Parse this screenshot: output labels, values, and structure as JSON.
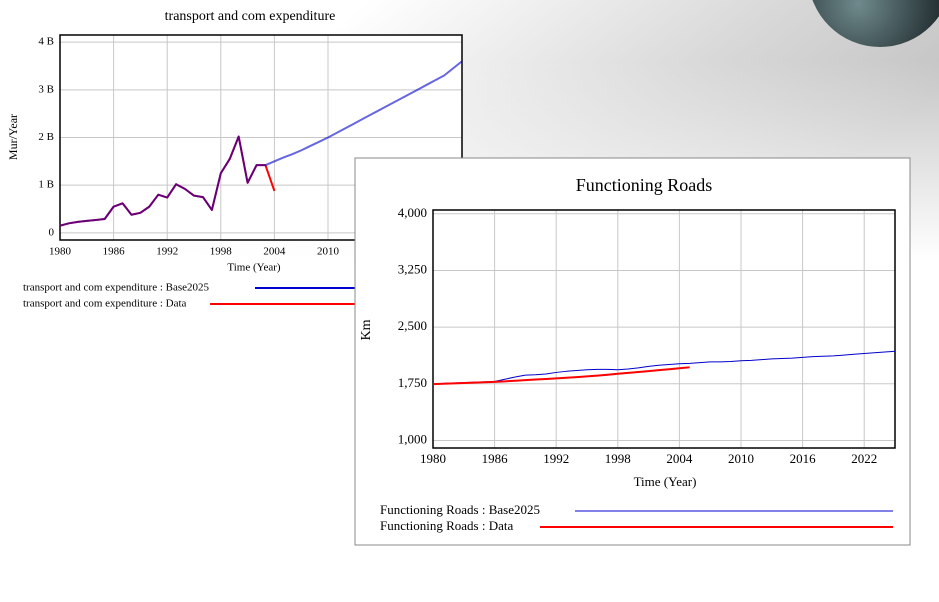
{
  "chart_data": [
    {
      "type": "line",
      "title": "transport and com expenditure",
      "x_label": "Time (Year)",
      "y_label": "Mur/Year",
      "x": [
        1980,
        1981,
        1982,
        1983,
        1984,
        1985,
        1986,
        1987,
        1988,
        1989,
        1990,
        1991,
        1992,
        1993,
        1994,
        1995,
        1996,
        1997,
        1998,
        1999,
        2000,
        2001,
        2002,
        2003,
        2004,
        2005,
        2006,
        2007,
        2008,
        2009,
        2010,
        2011,
        2012,
        2013,
        2014,
        2015,
        2016,
        2017,
        2018,
        2019,
        2020,
        2021,
        2022,
        2023,
        2024,
        2025
      ],
      "series": [
        {
          "name": "transport and com expenditure : Base2025",
          "color": "#0000cc",
          "values": [
            150000000,
            200000000,
            230000000,
            250000000,
            270000000,
            290000000,
            550000000,
            620000000,
            380000000,
            420000000,
            550000000,
            800000000,
            740000000,
            1020000000,
            920000000,
            780000000,
            750000000,
            480000000,
            1250000000,
            1550000000,
            2020000000,
            1050000000,
            1420000000,
            1420000000,
            1500000000,
            1580000000,
            1650000000,
            1730000000,
            1820000000,
            1910000000,
            2000000000,
            2100000000,
            2200000000,
            2300000000,
            2400000000,
            2500000000,
            2600000000,
            2700000000,
            2800000000,
            2900000000,
            3000000000,
            3100000000,
            3200000000,
            3300000000,
            3450000000,
            3600000000
          ]
        },
        {
          "name": "transport and com expenditure : Data",
          "color": "#ff0000",
          "values": [
            150000000,
            200000000,
            230000000,
            250000000,
            270000000,
            290000000,
            550000000,
            620000000,
            380000000,
            420000000,
            550000000,
            800000000,
            740000000,
            1020000000,
            920000000,
            780000000,
            750000000,
            480000000,
            1250000000,
            1550000000,
            2020000000,
            1050000000,
            1420000000,
            1420000000,
            880000000,
            null,
            null,
            null,
            null,
            null,
            null,
            null,
            null,
            null,
            null,
            null,
            null,
            null,
            null,
            null,
            null,
            null,
            null,
            null,
            null,
            null
          ]
        }
      ],
      "xlim": [
        1980,
        2025
      ],
      "xticks": [
        1980,
        1986,
        1992,
        1998,
        2004,
        2010
      ],
      "ylim": [
        -150000000,
        4150000000
      ],
      "yticks": [
        {
          "value": 0,
          "label": "0"
        },
        {
          "value": 1000000000,
          "label": "1 B"
        },
        {
          "value": 2000000000,
          "label": "2 B"
        },
        {
          "value": 3000000000,
          "label": "3 B"
        },
        {
          "value": 4000000000,
          "label": "4 B"
        }
      ],
      "grid": true
    },
    {
      "type": "line",
      "title": "Functioning Roads",
      "x_label": "Time (Year)",
      "y_label": "Km",
      "x": [
        1980,
        1981,
        1982,
        1983,
        1984,
        1985,
        1986,
        1987,
        1988,
        1989,
        1990,
        1991,
        1992,
        1993,
        1994,
        1995,
        1996,
        1997,
        1998,
        1999,
        2000,
        2001,
        2002,
        2003,
        2004,
        2005,
        2006,
        2007,
        2008,
        2009,
        2010,
        2011,
        2012,
        2013,
        2014,
        2015,
        2016,
        2017,
        2018,
        2019,
        2020,
        2021,
        2022,
        2023,
        2024,
        2025
      ],
      "series": [
        {
          "name": "Functioning Roads : Base2025",
          "color": "#0000cc",
          "values": [
            1745,
            1755,
            1760,
            1765,
            1770,
            1775,
            1780,
            1810,
            1840,
            1865,
            1870,
            1880,
            1900,
            1915,
            1925,
            1935,
            1940,
            1940,
            1935,
            1945,
            1960,
            1980,
            1995,
            2005,
            2015,
            2020,
            2030,
            2040,
            2040,
            2045,
            2055,
            2060,
            2070,
            2080,
            2085,
            2090,
            2100,
            2110,
            2115,
            2120,
            2130,
            2140,
            2150,
            2160,
            2170,
            2180
          ]
        },
        {
          "name": "Functioning Roads : Data",
          "color": "#ff0000",
          "values": [
            1745,
            1750,
            1755,
            1760,
            1765,
            1770,
            1775,
            1782,
            1790,
            1798,
            1806,
            1814,
            1822,
            1830,
            1838,
            1848,
            1858,
            1870,
            1882,
            1894,
            1906,
            1918,
            1930,
            1942,
            1955,
            1968,
            null,
            null,
            null,
            null,
            null,
            null,
            null,
            null,
            null,
            null,
            null,
            null,
            null,
            null,
            null,
            null,
            null,
            null,
            null,
            null
          ]
        }
      ],
      "xlim": [
        1980,
        2025
      ],
      "xticks": [
        1980,
        1986,
        1992,
        1998,
        2004,
        2010,
        2016,
        2022
      ],
      "ylim": [
        900,
        4050
      ],
      "yticks": [
        {
          "value": 1000,
          "label": "1,000"
        },
        {
          "value": 1750,
          "label": "1,750"
        },
        {
          "value": 2500,
          "label": "2,500"
        },
        {
          "value": 3250,
          "label": "3,250"
        },
        {
          "value": 4000,
          "label": "4,000"
        }
      ],
      "grid": true
    }
  ]
}
